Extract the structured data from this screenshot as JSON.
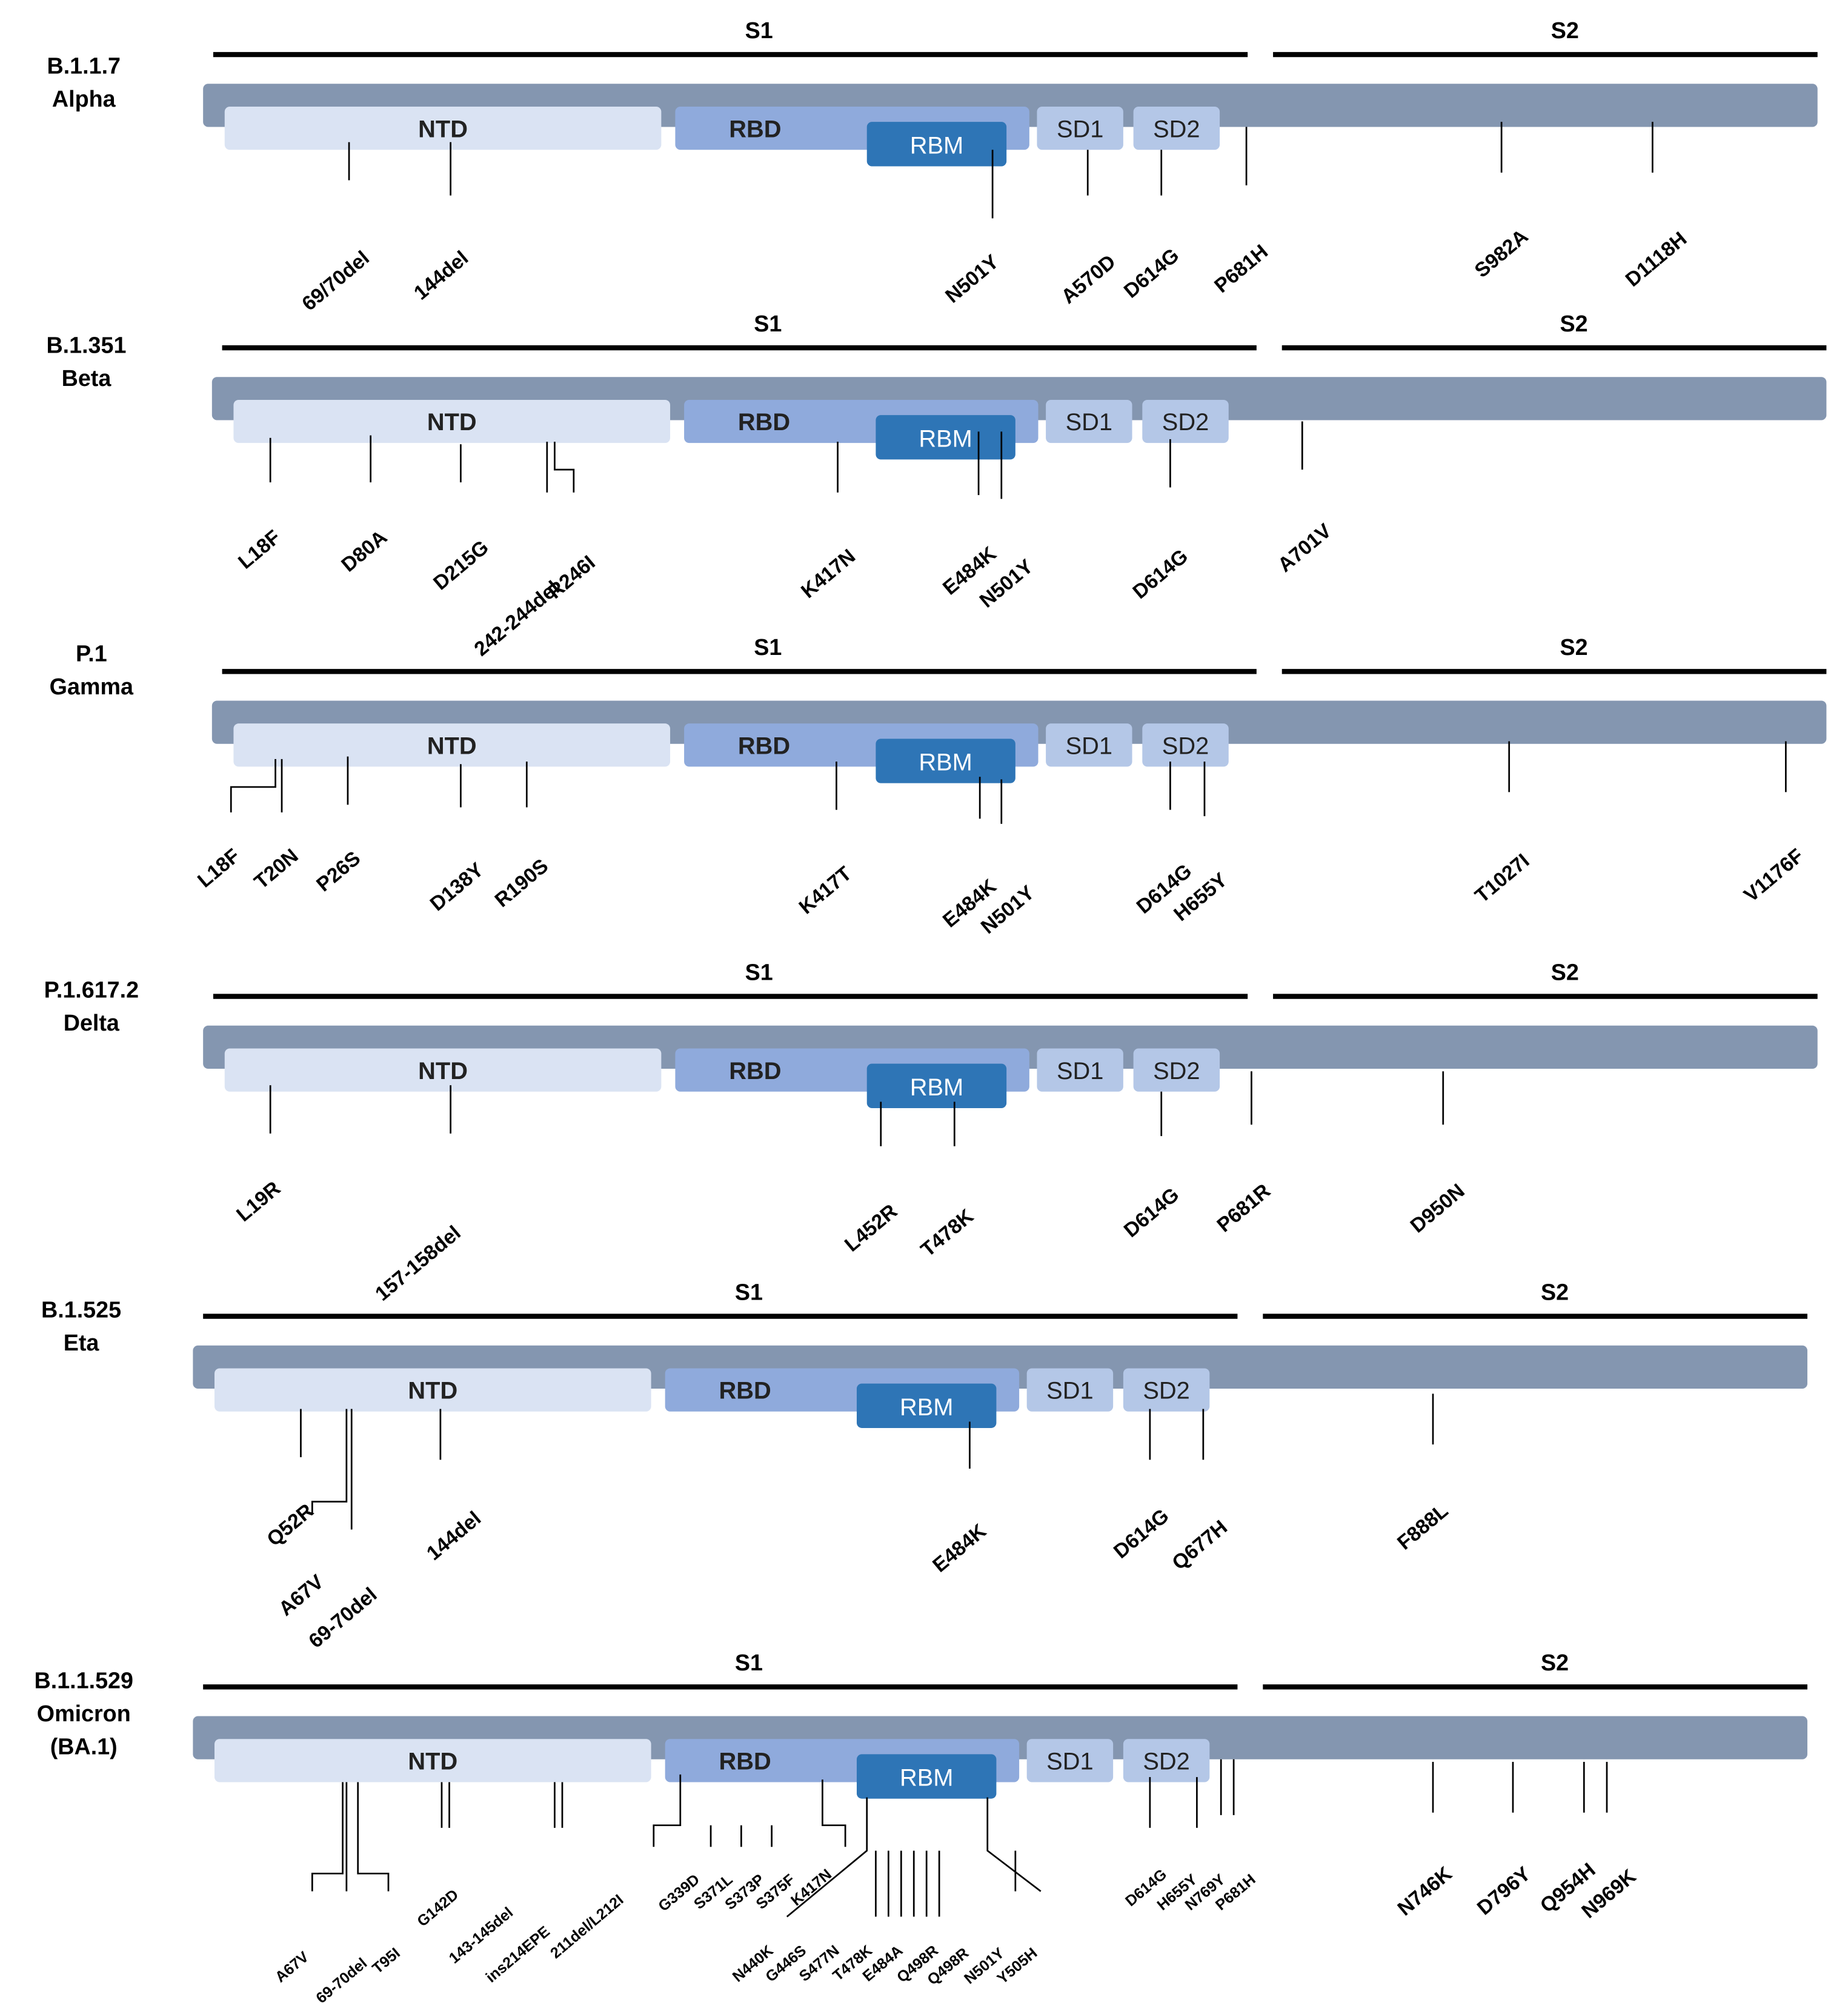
{
  "colors": {
    "backbone": "#8496b0",
    "ntd": "#dae3f3",
    "rbd": "#8faadc",
    "rbm": "#2e75b6",
    "sd": "#b4c7e7",
    "line": "#000000"
  },
  "labels": {
    "s1": "S1",
    "s2": "S2",
    "ntd": "NTD",
    "rbd": "RBD",
    "rbm": "RBM",
    "sd1": "SD1",
    "sd2": "SD2"
  },
  "variants": [
    {
      "lines": [
        "B.1.1.7",
        "Alpha"
      ],
      "mutations": [
        "69/70del",
        "144del",
        "N501Y",
        "A570D",
        "D614G",
        "P681H",
        "S982A",
        "D1118H"
      ]
    },
    {
      "lines": [
        "B.1.351",
        "Beta"
      ],
      "mutations": [
        "L18F",
        "D80A",
        "D215G",
        "242-244del",
        "R246I",
        "K417N",
        "E484K",
        "N501Y",
        "D614G",
        "A701V"
      ]
    },
    {
      "lines": [
        "P.1",
        "Gamma"
      ],
      "mutations": [
        "L18F",
        "T20N",
        "P26S",
        "D138Y",
        "R190S",
        "K417T",
        "E484K",
        "N501Y",
        "D614G",
        "H655Y",
        "T1027I",
        "V1176F"
      ]
    },
    {
      "lines": [
        "P.1.617.2",
        "Delta"
      ],
      "mutations": [
        "L19R",
        "157-158del",
        "L452R",
        "T478K",
        "D614G",
        "P681R",
        "D950N"
      ]
    },
    {
      "lines": [
        "B.1.525",
        "Eta"
      ],
      "mutations": [
        "Q52R",
        "A67V",
        "69-70del",
        "144del",
        "E484K",
        "D614G",
        "Q677H",
        "F888L"
      ]
    },
    {
      "lines": [
        "B.1.1.529",
        "Omicron",
        "(BA.1)"
      ],
      "mutations": [
        "A67V",
        "69-70del",
        "T95I",
        "G142D",
        "143-145del",
        "ins214EPE",
        "211del/L212I",
        "G339D",
        "S371L",
        "S373P",
        "S375F",
        "K417N",
        "N440K",
        "G446S",
        "S477N",
        "T478K",
        "E484A",
        "Q498R",
        "Q498R",
        "N501Y",
        "Y505H",
        "D614G",
        "H655Y",
        "N769Y",
        "P681H",
        "N746K",
        "D796Y",
        "Q954H",
        "N969K"
      ]
    }
  ]
}
